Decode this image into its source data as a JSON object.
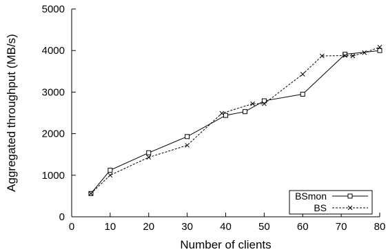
{
  "chart_data": {
    "type": "line",
    "title": "",
    "xlabel": "Number of clients",
    "ylabel": "Aggregated throughput (MB/s)",
    "xlim": [
      0,
      80
    ],
    "ylim": [
      0,
      5000
    ],
    "x_ticks": [
      0,
      10,
      20,
      30,
      40,
      50,
      60,
      70,
      80
    ],
    "y_ticks": [
      0,
      1000,
      2000,
      3000,
      4000,
      5000
    ],
    "grid": false,
    "legend_position": "bottom-right",
    "series": [
      {
        "name": "BSmon",
        "marker": "square",
        "line_style": "solid",
        "x": [
          5,
          10,
          20,
          30,
          40,
          45,
          50,
          60,
          71,
          80
        ],
        "y": [
          560,
          1120,
          1540,
          1930,
          2440,
          2530,
          2790,
          2950,
          3910,
          4000
        ]
      },
      {
        "name": "BS",
        "marker": "cross",
        "line_style": "dashed",
        "x": [
          5,
          10,
          20,
          30,
          39,
          47,
          50,
          60,
          65,
          71,
          73,
          76,
          80
        ],
        "y": [
          560,
          1000,
          1430,
          1720,
          2490,
          2720,
          2720,
          3430,
          3870,
          3880,
          3870,
          3950,
          4080
        ]
      }
    ]
  }
}
